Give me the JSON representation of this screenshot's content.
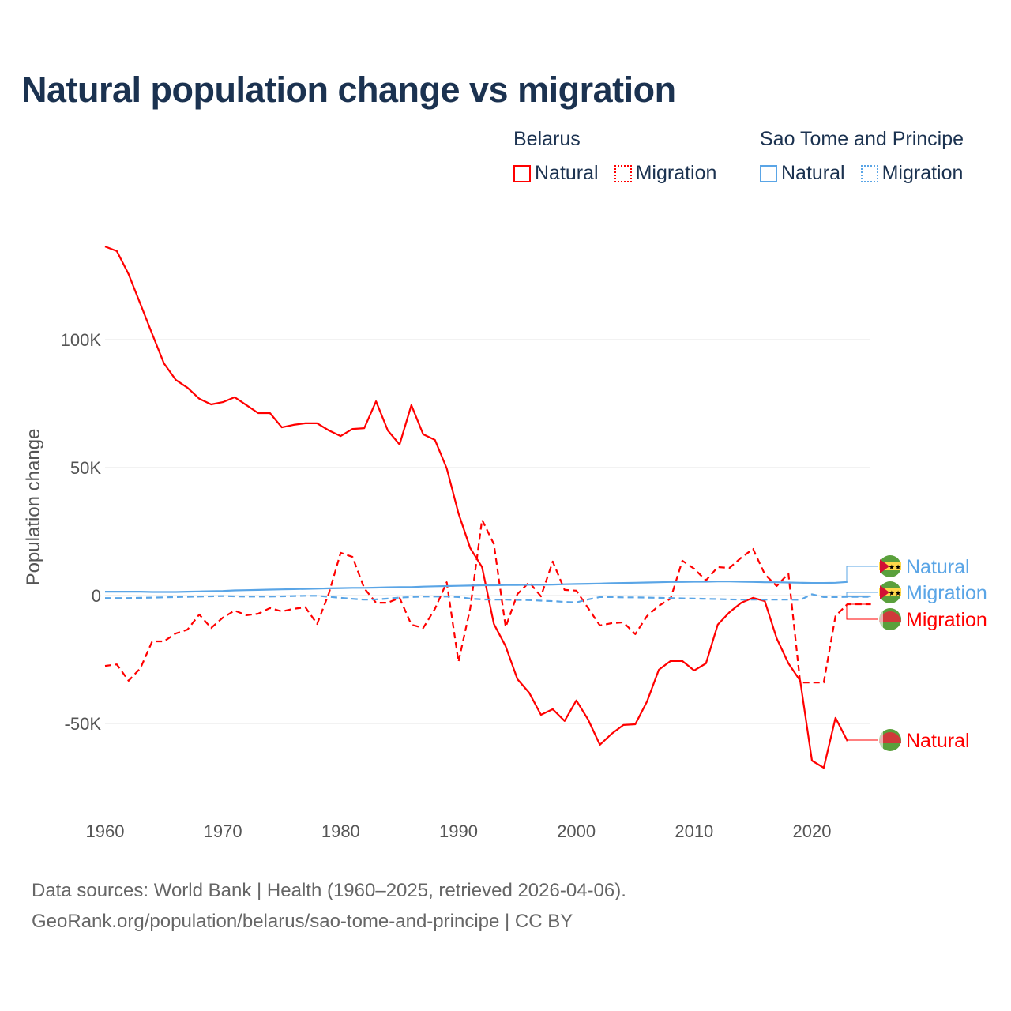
{
  "title": "Natural population change vs migration",
  "legend": [
    {
      "group": "Belarus",
      "items": [
        {
          "label": "Natural",
          "style": "solid",
          "color": "#ff0000"
        },
        {
          "label": "Migration",
          "style": "dotted",
          "color": "#ff0000"
        }
      ]
    },
    {
      "group": "Sao Tome and Principe",
      "items": [
        {
          "label": "Natural",
          "style": "solid",
          "color": "#5aa5e6"
        },
        {
          "label": "Migration",
          "style": "dotted",
          "color": "#5aa5e6"
        }
      ]
    }
  ],
  "footer": {
    "line1": "Data sources: World Bank | Health (1960–2025, retrieved 2026-04-06).",
    "line2": "GeoRank.org/population/belarus/sao-tome-and-principe | CC BY"
  },
  "chart_data": {
    "type": "line",
    "title": "Natural population change vs migration",
    "xlabel": "",
    "ylabel": "Population change",
    "xlim": [
      1960,
      2025
    ],
    "ylim": [
      -75000,
      140000
    ],
    "x_ticks": [
      1960,
      1970,
      1980,
      1990,
      2000,
      2010,
      2020
    ],
    "x_tick_labels": [
      "1960",
      "1970",
      "1980",
      "1990",
      "2000",
      "2010",
      "2020"
    ],
    "y_ticks": [
      100000,
      50000,
      0,
      -50000
    ],
    "y_tick_labels": [
      "100K",
      "50K",
      "0",
      "-50K"
    ],
    "grid": true,
    "series": [
      {
        "name": "Belarus Natural",
        "label": "Natural",
        "color": "#ff0000",
        "dash": false,
        "start": 1960,
        "values": [
          136.4,
          134.6,
          125.6,
          113.9,
          102.2,
          90.7,
          84.3,
          81.2,
          76.9,
          74.7,
          75.6,
          77.5,
          74.4,
          71.3,
          71.3,
          65.7,
          66.7,
          67.3,
          67.3,
          64.5,
          62.3,
          65.1,
          65.4,
          75.9,
          64.5,
          59,
          74.4,
          63,
          60.8,
          49.7,
          32.1,
          18.5,
          11.1,
          -11.1,
          -19.8,
          -32.7,
          -38,
          -46.6,
          -44.4,
          -49,
          -41,
          -48.5,
          -58.3,
          -54,
          -50.6,
          -50.3,
          -41.4,
          -29,
          -25.6,
          -25.6,
          -29.3,
          -26.5,
          -11.4,
          -6.5,
          -2.8,
          -0.9,
          -2.2,
          -16.7,
          -26.5,
          -33.3,
          -64.5,
          -67.3,
          -47.8,
          -56.8
        ]
      },
      {
        "name": "Belarus Migration",
        "label": "Migration",
        "color": "#ff0000",
        "dash": true,
        "start": 1960,
        "values": [
          -27.5,
          -26.9,
          -33.3,
          -28.4,
          -17.9,
          -17.9,
          -14.8,
          -13.3,
          -7.4,
          -12.7,
          -8.6,
          -5.9,
          -7.7,
          -7.1,
          -4.9,
          -6.2,
          -5.2,
          -4.6,
          -11.1,
          0.9,
          16.7,
          15.1,
          2.8,
          -2.8,
          -2.8,
          -0.9,
          -11.4,
          -12.7,
          -5.2,
          5.2,
          -25.9,
          -4.9,
          29.6,
          20.1,
          -12.3,
          0.6,
          5.2,
          -0.3,
          13.3,
          2.2,
          1.9,
          -4.9,
          -11.7,
          -10.8,
          -10.5,
          -15.1,
          -8,
          -4,
          -1.2,
          13.6,
          10.5,
          5.9,
          11.1,
          10.8,
          14.8,
          18.2,
          8.3,
          3.7,
          8.6,
          -34,
          -34,
          -34,
          -8,
          -3.4,
          -3.4,
          -3.4
        ]
      },
      {
        "name": "Sao Tome and Principe Natural",
        "label": "Natural",
        "color": "#5aa5e6",
        "dash": false,
        "start": 1960,
        "values": [
          1.5,
          1.5,
          1.5,
          1.5,
          1.4,
          1.4,
          1.4,
          1.5,
          1.6,
          1.7,
          1.8,
          2.0,
          2.1,
          2.2,
          2.3,
          2.4,
          2.5,
          2.6,
          2.7,
          2.8,
          2.9,
          3.0,
          3.0,
          3.1,
          3.2,
          3.3,
          3.3,
          3.5,
          3.6,
          3.7,
          3.8,
          3.9,
          4.0,
          4.0,
          4.1,
          4.1,
          4.2,
          4.2,
          4.3,
          4.4,
          4.5,
          4.6,
          4.7,
          4.8,
          4.9,
          5.0,
          5.1,
          5.2,
          5.3,
          5.3,
          5.4,
          5.4,
          5.5,
          5.5,
          5.4,
          5.3,
          5.2,
          5.2,
          5.1,
          5.0,
          4.9,
          4.9,
          5.0,
          5.3
        ]
      },
      {
        "name": "Sao Tome and Principe Migration",
        "label": "Migration",
        "color": "#5aa5e6",
        "dash": true,
        "start": 1960,
        "values": [
          -1.0,
          -1.0,
          -1.0,
          -0.9,
          -0.8,
          -0.7,
          -0.6,
          -0.5,
          -0.4,
          -0.3,
          -0.2,
          -0.3,
          -0.4,
          -0.4,
          -0.4,
          -0.3,
          -0.2,
          -0.1,
          -0.1,
          -0.5,
          -0.9,
          -1.3,
          -1.6,
          -1.5,
          -1.2,
          -0.8,
          -0.6,
          -0.4,
          -0.4,
          -0.4,
          -0.6,
          -1.2,
          -1.5,
          -1.6,
          -1.6,
          -1.7,
          -1.8,
          -2.0,
          -2.2,
          -2.5,
          -2.7,
          -1.5,
          -0.6,
          -0.6,
          -0.7,
          -0.7,
          -0.8,
          -0.9,
          -1.0,
          -1.1,
          -1.2,
          -1.3,
          -1.4,
          -1.5,
          -1.6,
          -1.6,
          -1.6,
          -1.6,
          -1.6,
          -1.7,
          0.5,
          -0.6,
          -0.6,
          -0.5,
          -0.5,
          -0.5
        ]
      }
    ],
    "end_labels": [
      {
        "series": 2,
        "text": "Natural"
      },
      {
        "series": 3,
        "text": "Migration"
      },
      {
        "series": 1,
        "text": "Migration"
      },
      {
        "series": 0,
        "text": "Natural"
      }
    ],
    "value_unit": "thousands"
  }
}
